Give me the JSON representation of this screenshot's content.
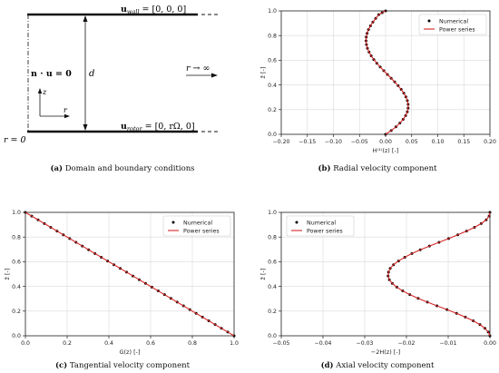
{
  "panel_a": {
    "wall_label": "u",
    "wall_sub": "wall",
    "wall_eq": " = [0, 0, 0]",
    "rotor_label": "u",
    "rotor_sub": "rotor",
    "rotor_eq": " = [0, rΩ, 0]",
    "symmetry": "n · u = 0",
    "gap": "d",
    "far_field": "r → ∞",
    "origin": "r = 0",
    "axis_z": "z",
    "axis_r": "r"
  },
  "captions": [
    {
      "letter": "(a)",
      "text": " Domain and boundary conditions"
    },
    {
      "letter": "(b)",
      "text": " Radial velocity component"
    },
    {
      "letter": "(c)",
      "text": " Tangential velocity component"
    },
    {
      "letter": "(d)",
      "text": " Axial velocity component"
    }
  ],
  "colors": {
    "numerical": "#000000",
    "power_series": "#d62728",
    "grid": "#d9d9d9"
  },
  "chart_data": [
    {
      "id": "b",
      "type": "line",
      "xlabel": "H⁽¹⁾(z) [-]",
      "ylabel": "ẑ [-]",
      "xlim": [
        -0.2,
        0.2
      ],
      "ylim": [
        0,
        1
      ],
      "xticks": [
        -0.2,
        -0.15,
        -0.1,
        -0.05,
        0.0,
        0.05,
        0.1,
        0.15,
        0.2
      ],
      "xticklabels": [
        "−0.20",
        "−0.15",
        "−0.10",
        "−0.05",
        "0.00",
        "0.05",
        "0.10",
        "0.15",
        "0.20"
      ],
      "yticks": [
        0,
        0.2,
        0.4,
        0.6,
        0.8,
        1.0
      ],
      "yticklabels": [
        "0.0",
        "0.2",
        "0.4",
        "0.6",
        "0.8",
        "1.0"
      ],
      "grid": true,
      "legend_position": "top-right",
      "series": [
        {
          "name": "Numerical",
          "style": "markers",
          "x": [
            0,
            0.0108,
            0.0198,
            0.0274,
            0.0336,
            0.0384,
            0.0416,
            0.0432,
            0.0432,
            0.0417,
            0.0389,
            0.0349,
            0.0299,
            0.024,
            0.0175,
            0.0107,
            0.0036,
            -0.0035,
            -0.0104,
            -0.0168,
            -0.0226,
            -0.0276,
            -0.0317,
            -0.0348,
            -0.0367,
            -0.0375,
            -0.0371,
            -0.0355,
            -0.0328,
            -0.029,
            -0.0244,
            -0.019,
            -0.0131,
            -0.0066,
            0
          ],
          "y": [
            0,
            0.0303,
            0.0606,
            0.0909,
            0.1212,
            0.1515,
            0.1818,
            0.2121,
            0.2424,
            0.2727,
            0.303,
            0.3333,
            0.3636,
            0.3939,
            0.4242,
            0.4545,
            0.4848,
            0.5152,
            0.5455,
            0.5758,
            0.6061,
            0.6364,
            0.6667,
            0.697,
            0.7273,
            0.7576,
            0.7879,
            0.8182,
            0.8485,
            0.8788,
            0.9091,
            0.9394,
            0.9697,
            0.985,
            1.0
          ]
        },
        {
          "name": "Power series",
          "style": "line",
          "x": [
            0,
            0.0108,
            0.0198,
            0.0274,
            0.0336,
            0.0384,
            0.0416,
            0.0432,
            0.0432,
            0.0417,
            0.0389,
            0.0349,
            0.0299,
            0.024,
            0.0175,
            0.0107,
            0.0036,
            -0.0035,
            -0.0104,
            -0.0168,
            -0.0226,
            -0.0276,
            -0.0317,
            -0.0348,
            -0.0367,
            -0.0375,
            -0.0371,
            -0.0355,
            -0.0328,
            -0.029,
            -0.0244,
            -0.019,
            -0.0131,
            -0.0066,
            0
          ],
          "y": [
            0,
            0.0303,
            0.0606,
            0.0909,
            0.1212,
            0.1515,
            0.1818,
            0.2121,
            0.2424,
            0.2727,
            0.303,
            0.3333,
            0.3636,
            0.3939,
            0.4242,
            0.4545,
            0.4848,
            0.5152,
            0.5455,
            0.5758,
            0.6061,
            0.6364,
            0.6667,
            0.697,
            0.7273,
            0.7576,
            0.7879,
            0.8182,
            0.8485,
            0.8788,
            0.9091,
            0.9394,
            0.9697,
            0.985,
            1.0
          ]
        }
      ]
    },
    {
      "id": "c",
      "type": "line",
      "xlabel": "G(z) [-]",
      "ylabel": "ẑ [-]",
      "xlim": [
        0,
        1
      ],
      "ylim": [
        0,
        1
      ],
      "xticks": [
        0,
        0.2,
        0.4,
        0.6,
        0.8,
        1.0
      ],
      "xticklabels": [
        "0.0",
        "0.2",
        "0.4",
        "0.6",
        "0.8",
        "1.0"
      ],
      "yticks": [
        0,
        0.2,
        0.4,
        0.6,
        0.8,
        1.0
      ],
      "yticklabels": [
        "0.0",
        "0.2",
        "0.4",
        "0.6",
        "0.8",
        "1.0"
      ],
      "grid": true,
      "legend_position": "top-right",
      "series": [
        {
          "name": "Numerical",
          "style": "markers",
          "x": [
            0,
            0.0303,
            0.0606,
            0.0909,
            0.1212,
            0.1515,
            0.1818,
            0.2121,
            0.2424,
            0.2727,
            0.303,
            0.3333,
            0.3636,
            0.3939,
            0.4242,
            0.4545,
            0.4848,
            0.5152,
            0.5455,
            0.5758,
            0.6061,
            0.6364,
            0.6667,
            0.697,
            0.7273,
            0.7576,
            0.7879,
            0.8182,
            0.8485,
            0.8788,
            0.9091,
            0.9394,
            0.9697,
            1.0
          ],
          "y": [
            1.0,
            0.9697,
            0.9394,
            0.9091,
            0.8788,
            0.8485,
            0.8182,
            0.7879,
            0.7576,
            0.7273,
            0.697,
            0.6667,
            0.6364,
            0.6061,
            0.5758,
            0.5455,
            0.5152,
            0.4848,
            0.4545,
            0.4242,
            0.3939,
            0.3636,
            0.3333,
            0.303,
            0.2727,
            0.2424,
            0.2121,
            0.1818,
            0.1515,
            0.1212,
            0.0909,
            0.0606,
            0.0303,
            0
          ]
        },
        {
          "name": "Power series",
          "style": "line",
          "x": [
            0,
            1.0
          ],
          "y": [
            1.0,
            0
          ]
        }
      ]
    },
    {
      "id": "d",
      "type": "line",
      "xlabel": "−2H(z) [-]",
      "ylabel": "ẑ [-]",
      "xlim": [
        -0.05,
        0
      ],
      "ylim": [
        0,
        1
      ],
      "xticks": [
        -0.05,
        -0.04,
        -0.03,
        -0.02,
        -0.01,
        0.0
      ],
      "xticklabels": [
        "−0.05",
        "−0.04",
        "−0.03",
        "−0.02",
        "−0.01",
        "0.00"
      ],
      "yticks": [
        0,
        0.2,
        0.4,
        0.6,
        0.8,
        1.0
      ],
      "yticklabels": [
        "0.0",
        "0.2",
        "0.4",
        "0.6",
        "0.8",
        "1.0"
      ],
      "grid": true,
      "legend_position": "top-left",
      "series": [
        {
          "name": "Numerical",
          "style": "markers",
          "x": [
            0,
            -0.0004,
            -0.0012,
            -0.0024,
            -0.004,
            -0.0059,
            -0.008,
            -0.0103,
            -0.0127,
            -0.015,
            -0.0172,
            -0.0192,
            -0.0209,
            -0.0223,
            -0.0234,
            -0.0241,
            -0.0244,
            -0.0243,
            -0.0239,
            -0.0231,
            -0.0219,
            -0.0204,
            -0.0187,
            -0.0167,
            -0.0145,
            -0.0122,
            -0.0099,
            -0.0077,
            -0.0056,
            -0.0037,
            -0.0021,
            -0.0009,
            -0.0002,
            0
          ],
          "y": [
            0,
            0.0303,
            0.0606,
            0.0909,
            0.1212,
            0.1515,
            0.1818,
            0.2121,
            0.2424,
            0.2727,
            0.303,
            0.3333,
            0.3636,
            0.3939,
            0.4242,
            0.4545,
            0.4848,
            0.5152,
            0.5455,
            0.5758,
            0.6061,
            0.6364,
            0.6667,
            0.697,
            0.7273,
            0.7576,
            0.7879,
            0.8182,
            0.8485,
            0.8788,
            0.9091,
            0.9394,
            0.9697,
            1.0
          ]
        },
        {
          "name": "Power series",
          "style": "line",
          "x": [
            0,
            -0.0004,
            -0.0012,
            -0.0024,
            -0.004,
            -0.0059,
            -0.008,
            -0.0103,
            -0.0127,
            -0.015,
            -0.0172,
            -0.0192,
            -0.0209,
            -0.0223,
            -0.0234,
            -0.0241,
            -0.0244,
            -0.0243,
            -0.0239,
            -0.0231,
            -0.0219,
            -0.0204,
            -0.0187,
            -0.0167,
            -0.0145,
            -0.0122,
            -0.0099,
            -0.0077,
            -0.0056,
            -0.0037,
            -0.0021,
            -0.0009,
            -0.0002,
            0
          ],
          "y": [
            0,
            0.0303,
            0.0606,
            0.0909,
            0.1212,
            0.1515,
            0.1818,
            0.2121,
            0.2424,
            0.2727,
            0.303,
            0.3333,
            0.3636,
            0.3939,
            0.4242,
            0.4545,
            0.4848,
            0.5152,
            0.5455,
            0.5758,
            0.6061,
            0.6364,
            0.6667,
            0.697,
            0.7273,
            0.7576,
            0.7879,
            0.8182,
            0.8485,
            0.8788,
            0.9091,
            0.9394,
            0.9697,
            1.0
          ]
        }
      ]
    }
  ]
}
